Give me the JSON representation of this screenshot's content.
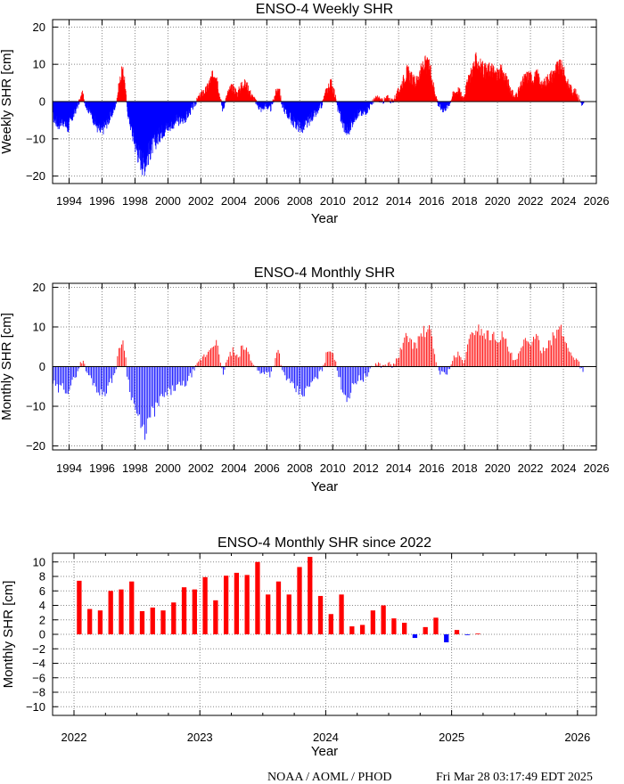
{
  "colors": {
    "positive": "#ff0000",
    "negative": "#0000ff",
    "grid": "#888888"
  },
  "footer": {
    "source": "NOAA / AOML / PHOD",
    "timestamp": "Fri Mar 28 03:17:49 EDT 2025"
  },
  "chart_data": [
    {
      "type": "bar",
      "title": "ENSO-4 Weekly SHR",
      "xlabel": "Year",
      "ylabel": "Weekly SHR [cm]",
      "xlim": [
        1993,
        2026
      ],
      "ylim": [
        -22,
        22
      ],
      "xticks": [
        1994,
        1996,
        1998,
        2000,
        2002,
        2004,
        2006,
        2008,
        2010,
        2012,
        2014,
        2016,
        2018,
        2020,
        2022,
        2024,
        2026
      ],
      "yticks": [
        -20,
        -10,
        0,
        10,
        20
      ],
      "grid": true,
      "sampling": "weekly",
      "x_start": 1993.0,
      "profile": [
        [
          1993.0,
          -4
        ],
        [
          1993.3,
          -6
        ],
        [
          1993.6,
          -5
        ],
        [
          1993.9,
          -7
        ],
        [
          1994.2,
          -4
        ],
        [
          1994.5,
          -1
        ],
        [
          1994.8,
          2
        ],
        [
          1995.0,
          -1
        ],
        [
          1995.3,
          -3
        ],
        [
          1995.6,
          -6
        ],
        [
          1995.9,
          -8
        ],
        [
          1996.2,
          -6
        ],
        [
          1996.5,
          -4
        ],
        [
          1996.8,
          -1
        ],
        [
          1997.0,
          4
        ],
        [
          1997.2,
          8
        ],
        [
          1997.35,
          6
        ],
        [
          1997.5,
          -2
        ],
        [
          1997.8,
          -8
        ],
        [
          1998.1,
          -13
        ],
        [
          1998.3,
          -15
        ],
        [
          1998.5,
          -17
        ],
        [
          1998.7,
          -15
        ],
        [
          1999.0,
          -12
        ],
        [
          1999.3,
          -10
        ],
        [
          1999.6,
          -8
        ],
        [
          1999.9,
          -7
        ],
        [
          2000.2,
          -6
        ],
        [
          2000.5,
          -5
        ],
        [
          2000.8,
          -5
        ],
        [
          2001.1,
          -4
        ],
        [
          2001.4,
          -2
        ],
        [
          2001.7,
          0
        ],
        [
          2002.0,
          2
        ],
        [
          2002.3,
          3
        ],
        [
          2002.6,
          6
        ],
        [
          2002.9,
          8
        ],
        [
          2003.1,
          2
        ],
        [
          2003.3,
          -2
        ],
        [
          2003.6,
          2
        ],
        [
          2003.9,
          4
        ],
        [
          2004.2,
          2
        ],
        [
          2004.5,
          5
        ],
        [
          2004.8,
          4
        ],
        [
          2005.0,
          2
        ],
        [
          2005.3,
          0
        ],
        [
          2005.6,
          -2
        ],
        [
          2005.9,
          -1
        ],
        [
          2006.2,
          -2
        ],
        [
          2006.5,
          2
        ],
        [
          2006.7,
          4
        ],
        [
          2006.9,
          -1
        ],
        [
          2007.2,
          -3
        ],
        [
          2007.5,
          -5
        ],
        [
          2007.8,
          -6
        ],
        [
          2008.1,
          -7
        ],
        [
          2008.4,
          -6
        ],
        [
          2008.7,
          -4
        ],
        [
          2009.0,
          -3
        ],
        [
          2009.3,
          -1
        ],
        [
          2009.6,
          3
        ],
        [
          2009.9,
          5
        ],
        [
          2010.1,
          2
        ],
        [
          2010.3,
          -2
        ],
        [
          2010.6,
          -6
        ],
        [
          2010.9,
          -8
        ],
        [
          2011.2,
          -5
        ],
        [
          2011.5,
          -3
        ],
        [
          2011.8,
          -3
        ],
        [
          2012.1,
          -2
        ],
        [
          2012.4,
          0
        ],
        [
          2012.7,
          1
        ],
        [
          2013.0,
          0
        ],
        [
          2013.3,
          1
        ],
        [
          2013.6,
          0
        ],
        [
          2013.9,
          2
        ],
        [
          2014.2,
          5
        ],
        [
          2014.5,
          8
        ],
        [
          2014.8,
          6
        ],
        [
          2015.0,
          5
        ],
        [
          2015.3,
          8
        ],
        [
          2015.6,
          10
        ],
        [
          2015.9,
          9
        ],
        [
          2016.1,
          4
        ],
        [
          2016.4,
          -1
        ],
        [
          2016.7,
          -2
        ],
        [
          2017.0,
          -1
        ],
        [
          2017.3,
          2
        ],
        [
          2017.6,
          3
        ],
        [
          2017.9,
          1
        ],
        [
          2018.1,
          4
        ],
        [
          2018.4,
          8
        ],
        [
          2018.7,
          11
        ],
        [
          2019.0,
          9
        ],
        [
          2019.3,
          8
        ],
        [
          2019.6,
          9
        ],
        [
          2019.9,
          7
        ],
        [
          2020.2,
          8
        ],
        [
          2020.5,
          6
        ],
        [
          2020.8,
          3
        ],
        [
          2021.0,
          1
        ],
        [
          2021.3,
          3
        ],
        [
          2021.6,
          6
        ],
        [
          2021.9,
          7
        ],
        [
          2022.1,
          6
        ],
        [
          2022.4,
          7
        ],
        [
          2022.7,
          4
        ],
        [
          2023.0,
          6
        ],
        [
          2023.3,
          7
        ],
        [
          2023.6,
          9
        ],
        [
          2023.9,
          9
        ],
        [
          2024.2,
          5
        ],
        [
          2024.5,
          3
        ],
        [
          2024.8,
          2
        ],
        [
          2025.0,
          0
        ],
        [
          2025.2,
          -1
        ]
      ]
    },
    {
      "type": "bar",
      "title": "ENSO-4 Monthly SHR",
      "xlabel": "Year",
      "ylabel": "Monthly SHR [cm]",
      "xlim": [
        1993,
        2026
      ],
      "ylim": [
        -21,
        21
      ],
      "xticks": [
        1994,
        1996,
        1998,
        2000,
        2002,
        2004,
        2006,
        2008,
        2010,
        2012,
        2014,
        2016,
        2018,
        2020,
        2022,
        2024,
        2026
      ],
      "yticks": [
        -20,
        -10,
        0,
        10,
        20
      ],
      "grid": true,
      "sampling": "monthly",
      "x_start": 1993.0,
      "profile": [
        [
          1993.0,
          -4
        ],
        [
          1993.3,
          -6
        ],
        [
          1993.6,
          -5
        ],
        [
          1993.9,
          -6
        ],
        [
          1994.2,
          -4
        ],
        [
          1994.5,
          -1
        ],
        [
          1994.8,
          2
        ],
        [
          1995.0,
          -1
        ],
        [
          1995.3,
          -3
        ],
        [
          1995.6,
          -5
        ],
        [
          1995.9,
          -7
        ],
        [
          1996.2,
          -6
        ],
        [
          1996.5,
          -4
        ],
        [
          1996.8,
          -1
        ],
        [
          1997.0,
          4
        ],
        [
          1997.2,
          7
        ],
        [
          1997.35,
          5
        ],
        [
          1997.5,
          -2
        ],
        [
          1997.8,
          -8
        ],
        [
          1998.1,
          -12
        ],
        [
          1998.3,
          -15
        ],
        [
          1998.5,
          -17
        ],
        [
          1998.7,
          -15
        ],
        [
          1999.0,
          -12
        ],
        [
          1999.3,
          -10
        ],
        [
          1999.6,
          -8
        ],
        [
          1999.9,
          -7
        ],
        [
          2000.2,
          -6
        ],
        [
          2000.5,
          -5
        ],
        [
          2000.8,
          -5
        ],
        [
          2001.1,
          -4
        ],
        [
          2001.4,
          -2
        ],
        [
          2001.7,
          0
        ],
        [
          2002.0,
          2
        ],
        [
          2002.3,
          3
        ],
        [
          2002.6,
          5
        ],
        [
          2002.9,
          7
        ],
        [
          2003.1,
          2
        ],
        [
          2003.3,
          -2
        ],
        [
          2003.6,
          2
        ],
        [
          2003.9,
          4
        ],
        [
          2004.2,
          2
        ],
        [
          2004.5,
          5
        ],
        [
          2004.8,
          4
        ],
        [
          2005.0,
          2
        ],
        [
          2005.3,
          0
        ],
        [
          2005.6,
          -2
        ],
        [
          2005.9,
          -1
        ],
        [
          2006.2,
          -2
        ],
        [
          2006.5,
          2
        ],
        [
          2006.7,
          4
        ],
        [
          2006.9,
          -1
        ],
        [
          2007.2,
          -3
        ],
        [
          2007.5,
          -5
        ],
        [
          2007.8,
          -6
        ],
        [
          2008.1,
          -7
        ],
        [
          2008.4,
          -6
        ],
        [
          2008.7,
          -4
        ],
        [
          2009.0,
          -3
        ],
        [
          2009.3,
          -1
        ],
        [
          2009.6,
          3
        ],
        [
          2009.9,
          5
        ],
        [
          2010.1,
          2
        ],
        [
          2010.3,
          -2
        ],
        [
          2010.6,
          -6
        ],
        [
          2010.9,
          -8
        ],
        [
          2011.2,
          -5
        ],
        [
          2011.5,
          -3
        ],
        [
          2011.8,
          -3
        ],
        [
          2012.1,
          -2
        ],
        [
          2012.4,
          0
        ],
        [
          2012.7,
          1
        ],
        [
          2013.0,
          0
        ],
        [
          2013.3,
          1
        ],
        [
          2013.6,
          0
        ],
        [
          2013.9,
          2
        ],
        [
          2014.2,
          5
        ],
        [
          2014.5,
          8
        ],
        [
          2014.8,
          6
        ],
        [
          2015.0,
          5
        ],
        [
          2015.3,
          8
        ],
        [
          2015.6,
          9
        ],
        [
          2015.9,
          9
        ],
        [
          2016.1,
          4
        ],
        [
          2016.4,
          -1
        ],
        [
          2016.7,
          -2
        ],
        [
          2017.0,
          -1
        ],
        [
          2017.3,
          2
        ],
        [
          2017.6,
          3
        ],
        [
          2017.9,
          1
        ],
        [
          2018.1,
          4
        ],
        [
          2018.4,
          8
        ],
        [
          2018.7,
          10
        ],
        [
          2019.0,
          9
        ],
        [
          2019.3,
          8
        ],
        [
          2019.6,
          8
        ],
        [
          2019.9,
          7
        ],
        [
          2020.2,
          8
        ],
        [
          2020.5,
          6
        ],
        [
          2020.8,
          3
        ],
        [
          2021.0,
          1
        ],
        [
          2021.3,
          3
        ],
        [
          2021.6,
          6
        ],
        [
          2021.9,
          7
        ],
        [
          2022.1,
          6
        ],
        [
          2022.4,
          7
        ],
        [
          2022.7,
          4
        ],
        [
          2023.0,
          6
        ],
        [
          2023.3,
          7
        ],
        [
          2023.6,
          9
        ],
        [
          2023.9,
          9
        ],
        [
          2024.2,
          5
        ],
        [
          2024.5,
          3
        ],
        [
          2024.8,
          2
        ],
        [
          2025.0,
          0
        ],
        [
          2025.2,
          -1
        ]
      ]
    },
    {
      "type": "bar",
      "title": "ENSO-4 Monthly SHR since 2022",
      "xlabel": "Year",
      "ylabel": "Monthly SHR [cm]",
      "xlim": [
        2021.83,
        2026.15
      ],
      "ylim": [
        -11.2,
        11.2
      ],
      "xticks": [
        2022,
        2023,
        2024,
        2025,
        2026
      ],
      "yticks": [
        -10,
        -8,
        -6,
        -4,
        -2,
        0,
        2,
        4,
        6,
        8,
        10
      ],
      "grid": true,
      "x_start": 2022.0,
      "values": [
        7.4,
        3.5,
        3.3,
        6.0,
        6.2,
        7.3,
        3.2,
        3.7,
        3.3,
        4.4,
        6.5,
        6.2,
        7.9,
        4.7,
        8.1,
        8.5,
        8.2,
        10.0,
        5.5,
        7.3,
        5.5,
        9.3,
        10.7,
        5.3,
        2.8,
        5.5,
        1.1,
        1.3,
        3.3,
        4.0,
        2.2,
        1.6,
        -0.5,
        1.0,
        2.3,
        -1.1,
        0.6,
        -0.1,
        0.1
      ]
    }
  ]
}
